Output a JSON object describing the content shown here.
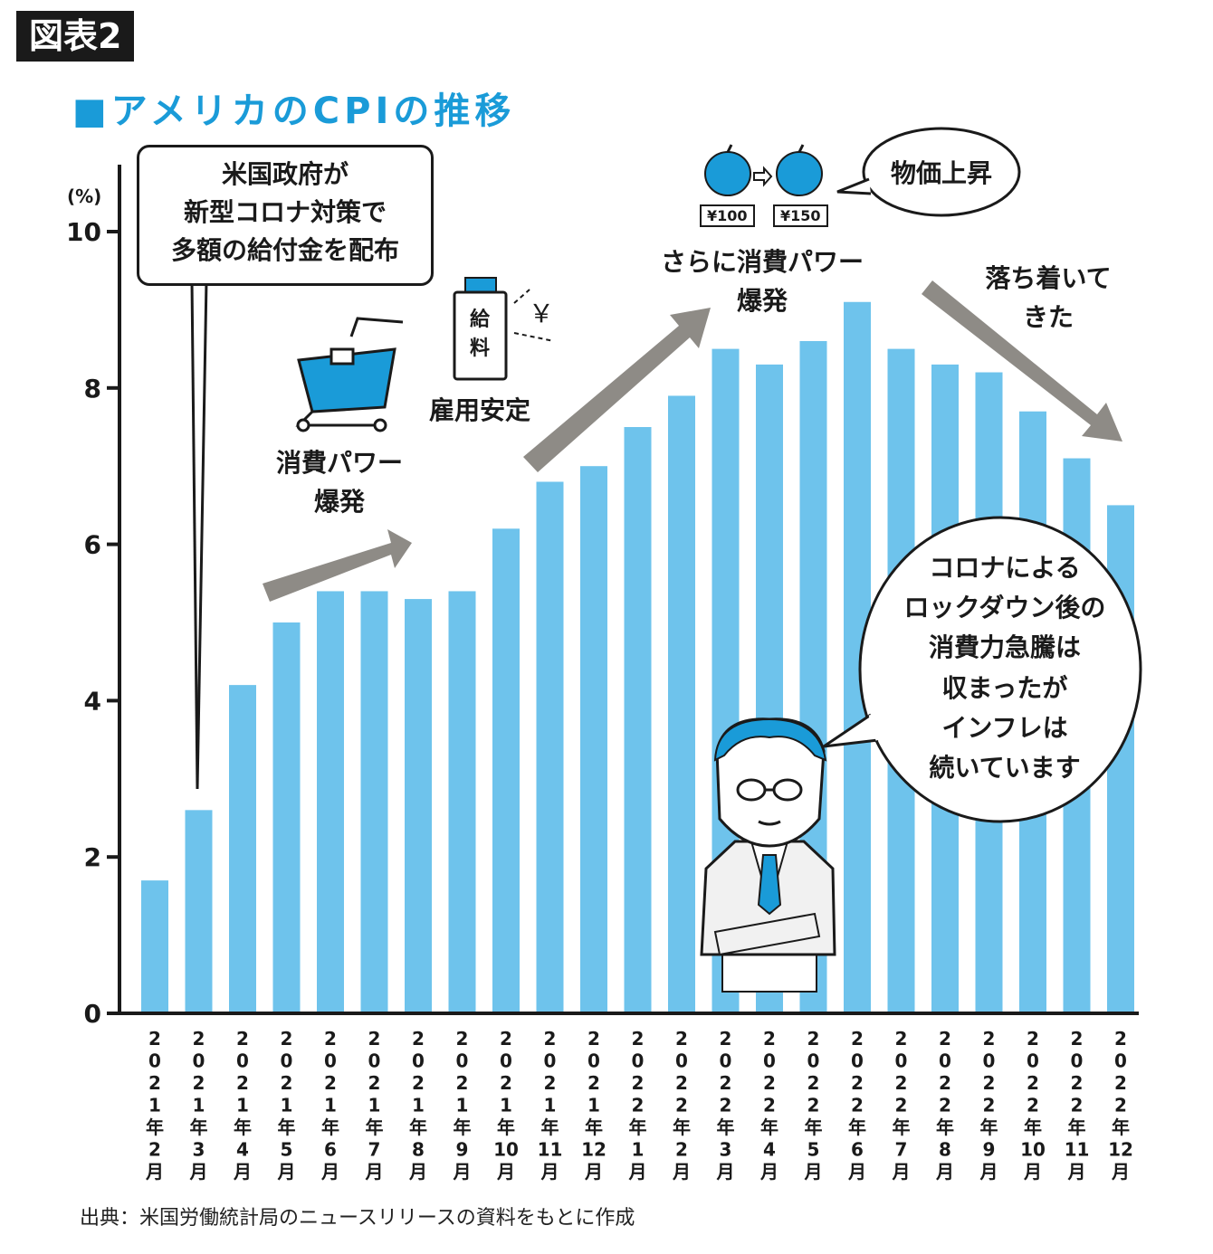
{
  "figure_label": "図表2",
  "title": "■アメリカのCPIの推移",
  "source": "出典：米国労働統計局のニュースリリースの資料をもとに作成",
  "colors": {
    "bar": "#6ec3ec",
    "accent": "#1a9bd8",
    "arrow": "#8e8b86",
    "text": "#1a1a1a"
  },
  "annotations": {
    "callout": "米国政府が\n新型コロナ対策で\n多額の給付金を配布",
    "consumption1": "消費パワー\n爆発",
    "employment": "雇用安定",
    "pay_envelope": "給\n料",
    "yen": "￥",
    "consumption2": "さらに消費パワー\n爆発",
    "price_rise": "物価上昇",
    "price_before": "¥100",
    "price_after": "¥150",
    "calming": "落ち着いて\nきた",
    "speech": "コロナによる\nロックダウン後の\n消費力急騰は\n収まったが\nインフレは\n続いています"
  },
  "icons": [
    "shopping-cart-icon",
    "pay-envelope-icon",
    "apple-icon",
    "arrow-icon",
    "businessman-illustration"
  ],
  "chart_data": {
    "type": "bar",
    "ylabel": "(%)",
    "ylim": [
      0,
      10
    ],
    "yticks": [
      0,
      2,
      4,
      6,
      8,
      10
    ],
    "grid": false,
    "categories": [
      "2021年2月",
      "2021年3月",
      "2021年4月",
      "2021年5月",
      "2021年6月",
      "2021年7月",
      "2021年8月",
      "2021年9月",
      "2021年10月",
      "2021年11月",
      "2021年12月",
      "2022年1月",
      "2022年2月",
      "2022年3月",
      "2022年4月",
      "2022年5月",
      "2022年6月",
      "2022年7月",
      "2022年8月",
      "2022年9月",
      "2022年10月",
      "2022年11月",
      "2022年12月"
    ],
    "values": [
      1.7,
      2.6,
      4.2,
      5.0,
      5.4,
      5.4,
      5.3,
      5.4,
      6.2,
      6.8,
      7.0,
      7.5,
      7.9,
      8.5,
      8.3,
      8.6,
      9.1,
      8.5,
      8.3,
      8.2,
      7.7,
      7.1,
      6.5
    ]
  }
}
